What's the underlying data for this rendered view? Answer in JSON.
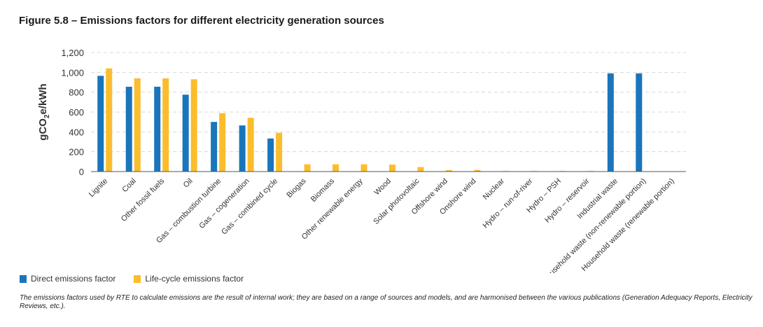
{
  "title": "Figure 5.8 – Emissions factors for different electricity generation sources",
  "footnote": "The emissions factors used by RTE to calculate emissions are the result of internal work; they are based on a range of sources and models, and are harmonised between the various publications (Generation Adequacy Reports, Electricity Reviews, etc.).",
  "chart_data": {
    "type": "bar",
    "ylabel": "gCO2e/kWh",
    "ylim": [
      0,
      1200
    ],
    "yticks": [
      0,
      200,
      400,
      600,
      800,
      1000,
      1200
    ],
    "ytick_labels": [
      "0",
      "200",
      "400",
      "600",
      "800",
      "1,000",
      "1,200"
    ],
    "grid": true,
    "legend_position": "bottom-left",
    "categories": [
      "Lignite",
      "Coal",
      "Other fossil fuels",
      "Oil",
      "Gas – combustion turbine",
      "Gas – cogeneration",
      "Gas – combined cycle",
      "Biogas",
      "Biomass",
      "Other renewable energy",
      "Wood",
      "Solar photovoltaic",
      "Offshore wind",
      "Onshore wind",
      "Nuclear",
      "Hydro – run-of-river",
      "Hydro – PSH",
      "Hydro – reservoir",
      "Industrial waste",
      "Household waste (non-renewable portion)",
      "Household waste (renewable portion)"
    ],
    "series": [
      {
        "name": "Direct emissions factor",
        "color": "#1a75bb",
        "values": [
          965,
          855,
          855,
          775,
          500,
          465,
          333,
          0,
          0,
          0,
          0,
          0,
          0,
          0,
          0,
          0,
          0,
          0,
          990,
          990,
          0
        ]
      },
      {
        "name": "Life-cycle emissions factor",
        "color": "#fbbd2c",
        "values": [
          1040,
          940,
          940,
          930,
          588,
          542,
          391,
          73,
          73,
          73,
          70,
          45,
          15,
          16,
          6,
          6,
          6,
          6,
          0,
          0,
          0
        ]
      }
    ]
  }
}
